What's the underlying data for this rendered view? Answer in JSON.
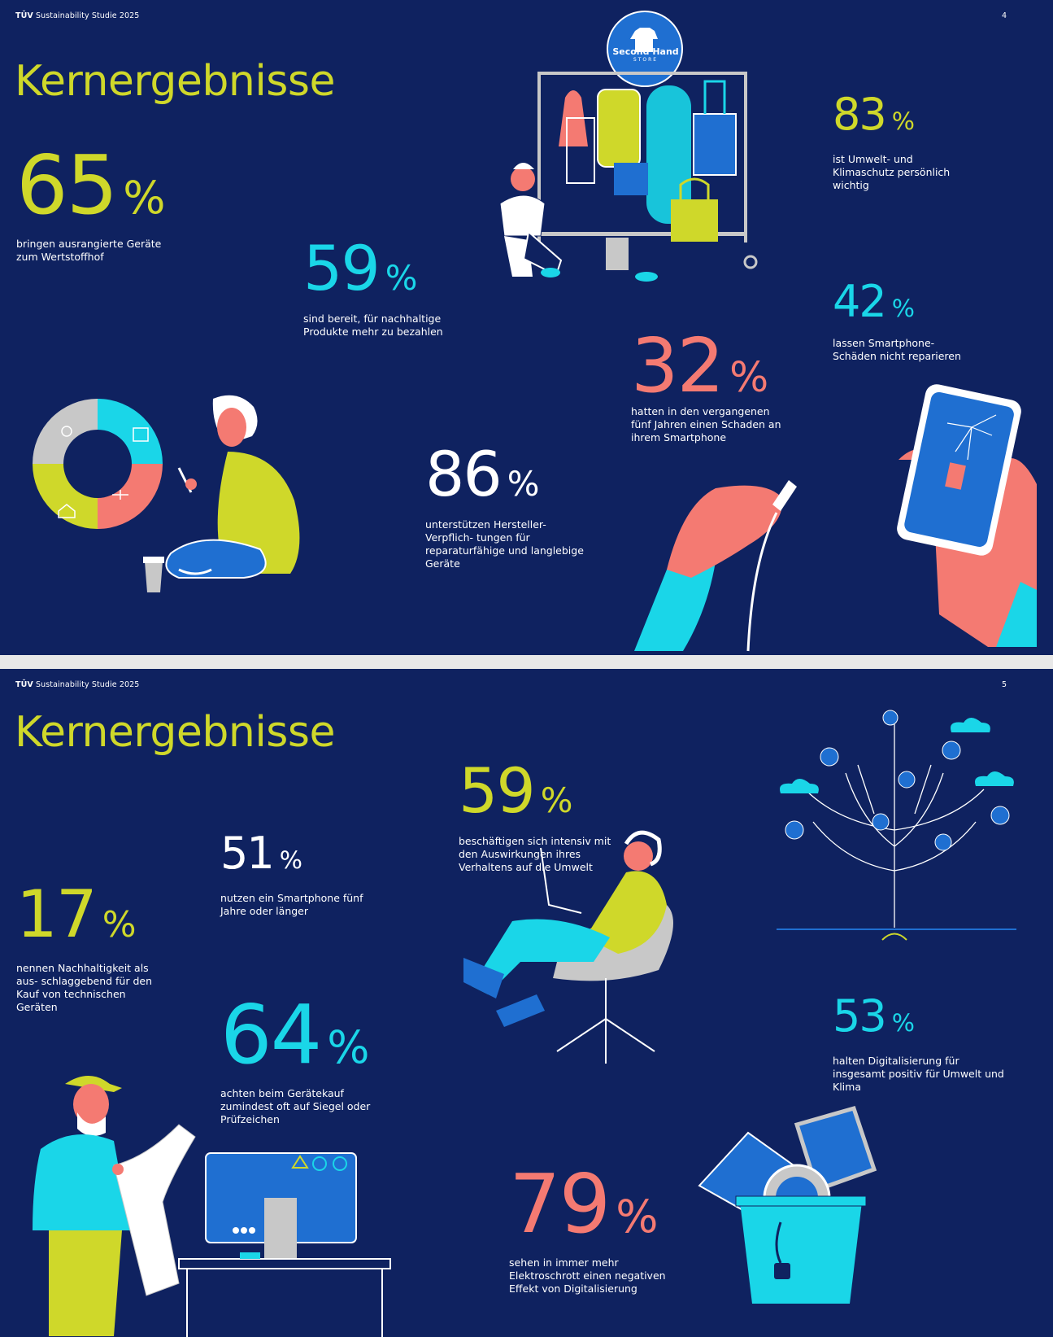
{
  "page1": {
    "header": {
      "brand": "TÜV",
      "study": "Sustainability Studie 2025",
      "page_number": "4"
    },
    "title": "Kernergebnisse",
    "store_sign": {
      "line1": "Second Hand",
      "line2": "STORE"
    },
    "stats": [
      {
        "value": "65",
        "unit": "%",
        "text": "bringen ausrangierte Geräte zum Wertstoffhof"
      },
      {
        "value": "59",
        "unit": "%",
        "text": "sind bereit, für nachhaltige Produkte mehr zu bezahlen"
      },
      {
        "value": "83",
        "unit": "%",
        "text": "ist Umwelt- und Klimaschutz persönlich wichtig"
      },
      {
        "value": "42",
        "unit": "%",
        "text": "lassen Smartphone-Schäden nicht reparieren"
      },
      {
        "value": "32",
        "unit": "%",
        "text": "hatten in den vergangenen fünf Jahren einen Schaden an ihrem Smartphone"
      },
      {
        "value": "86",
        "unit": "%",
        "text": "unterstützen Hersteller-Verpflich- tungen für reparaturfähige und langlebige Geräte"
      }
    ],
    "colors": {
      "background": "#0f2260",
      "lime": "#cfd82a",
      "cyan": "#1ad6e8",
      "coral": "#f47a72",
      "blue": "#1f6fd1",
      "grey": "#c8c8c8"
    }
  },
  "page2": {
    "header": {
      "brand": "TÜV",
      "study": "Sustainability Studie 2025",
      "page_number": "5"
    },
    "title": "Kernergebnisse",
    "stats": [
      {
        "value": "17",
        "unit": "%",
        "text": "nennen Nachhaltigkeit als aus- schlaggebend für den Kauf von technischen Geräten"
      },
      {
        "value": "51",
        "unit": "%",
        "text": "nutzen ein Smartphone fünf Jahre oder länger"
      },
      {
        "value": "64",
        "unit": "%",
        "text": "achten beim Gerätekauf zumindest oft auf Siegel oder Prüfzeichen"
      },
      {
        "value": "59",
        "unit": "%",
        "text": "beschäftigen sich intensiv mit den Auswirkungen ihres Verhaltens auf die Umwelt"
      },
      {
        "value": "53",
        "unit": "%",
        "text": "halten Digitalisierung für insgesamt positiv für Umwelt und Klima"
      },
      {
        "value": "79",
        "unit": "%",
        "text": "sehen in immer mehr Elektroschrott einen negativen Effekt von Digitalisierung"
      }
    ]
  }
}
